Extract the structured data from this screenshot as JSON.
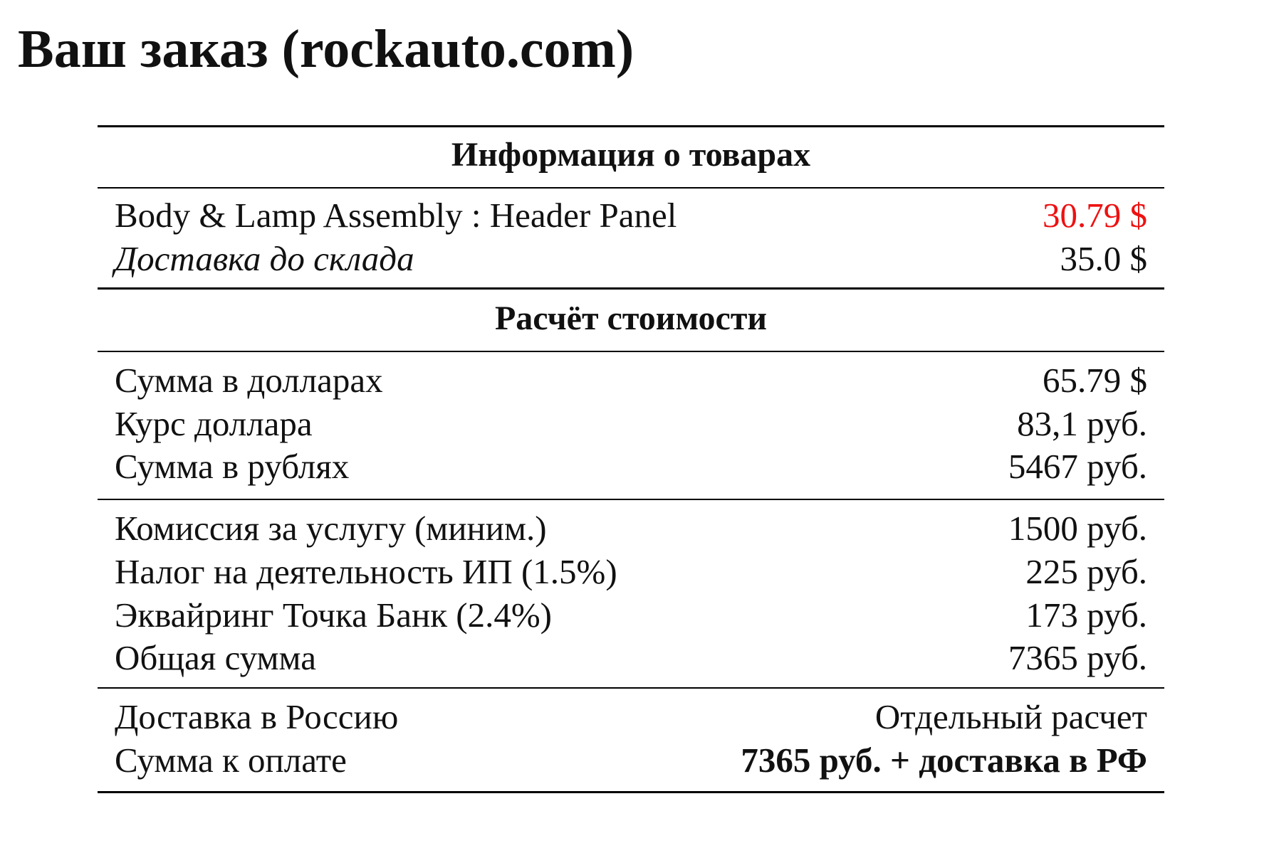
{
  "title": "Ваш заказ (rockauto.com)",
  "colors": {
    "price_highlight": "#ee1111"
  },
  "products": {
    "header": "Информация о товарах",
    "rows": [
      {
        "label": "Body & Lamp Assembly : Header Panel",
        "value": "30.79 $"
      },
      {
        "label": "Доставка до склада",
        "value": "35.0 $"
      }
    ]
  },
  "calc": {
    "header": "Расчёт стоимости",
    "group1": [
      {
        "label": "Сумма в долларах",
        "value": "65.79 $"
      },
      {
        "label": "Курс доллара",
        "value": "83,1 руб."
      },
      {
        "label": "Сумма в рублях",
        "value": "5467 руб."
      }
    ],
    "group2": [
      {
        "label": "Комиссия за услугу (миним.)",
        "value": "1500 руб."
      },
      {
        "label": "Налог на деятельность ИП (1.5%)",
        "value": "225 руб."
      },
      {
        "label": "Эквайринг Точка Банк (2.4%)",
        "value": "173 руб."
      },
      {
        "label": "Общая сумма",
        "value": "7365 руб."
      }
    ],
    "group3": [
      {
        "label": "Доставка в Россию",
        "value": "Отдельный расчет"
      },
      {
        "label": "Сумма к оплате",
        "value": "7365 руб. + доставка в РФ"
      }
    ]
  }
}
